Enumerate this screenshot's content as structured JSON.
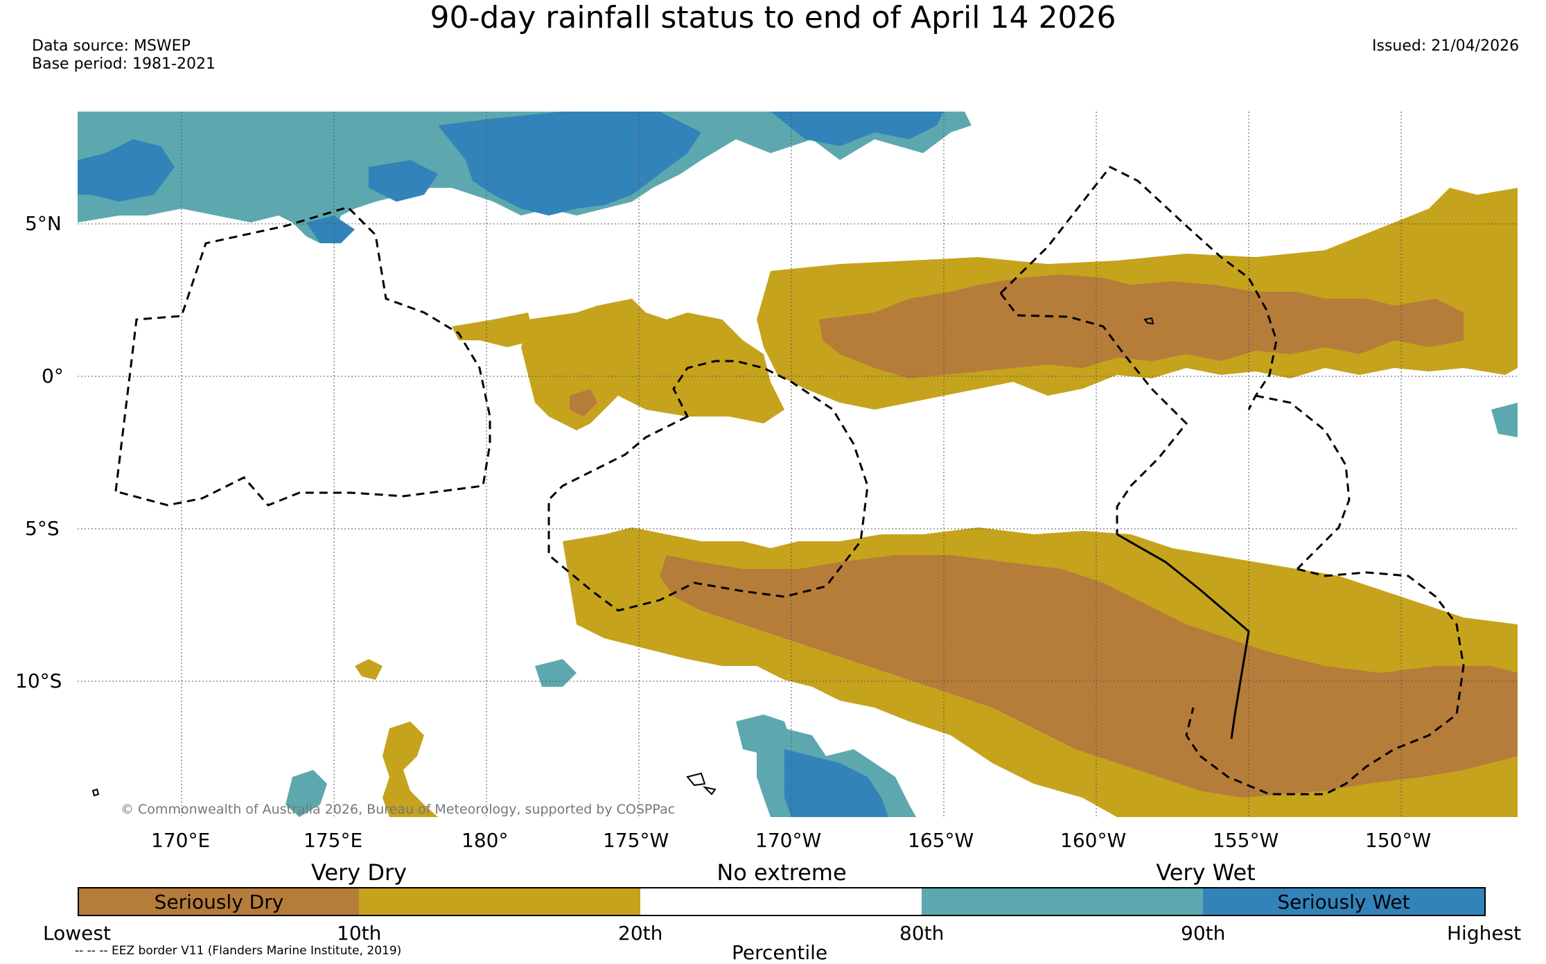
{
  "title": "90-day rainfall status to end of April 14 2026",
  "data_source": "Data source: MSWEP",
  "base_period": "Base period: 1981-2021",
  "issued": "Issued: 21/04/2026",
  "copyright": "© Commonwealth of Australia 2026, Bureau of Meteorology, supported by COSPPac",
  "lat_labels": [
    "5°N",
    "0°",
    "5°S",
    "10°S"
  ],
  "lon_labels": [
    "170°E",
    "175°E",
    "180°",
    "175°W",
    "170°W",
    "165°W",
    "160°W",
    "155°W",
    "150°W"
  ],
  "legend": {
    "categories": [
      "Very Dry",
      "No extreme",
      "Very Wet"
    ],
    "classes": [
      {
        "label": "Seriously Dry",
        "color": "#b57c3a"
      },
      {
        "label": "",
        "color": "#c5a31c"
      },
      {
        "label": "",
        "color": "#ffffff"
      },
      {
        "label": "",
        "color": "#5da8ae"
      },
      {
        "label": "Seriously Wet",
        "color": "#3283b9"
      }
    ],
    "percentiles": [
      "Lowest",
      "10th",
      "20th",
      "80th",
      "90th",
      "Highest"
    ],
    "axis_label": "Percentile"
  },
  "eez_note": "-- -- -- EEZ border V11 (Flanders Marine Institute, 2019)",
  "colors": {
    "seriously_dry": "#b57c3a",
    "very_dry": "#c5a31c",
    "very_wet": "#5da8ae",
    "seriously_wet": "#3283b9"
  }
}
